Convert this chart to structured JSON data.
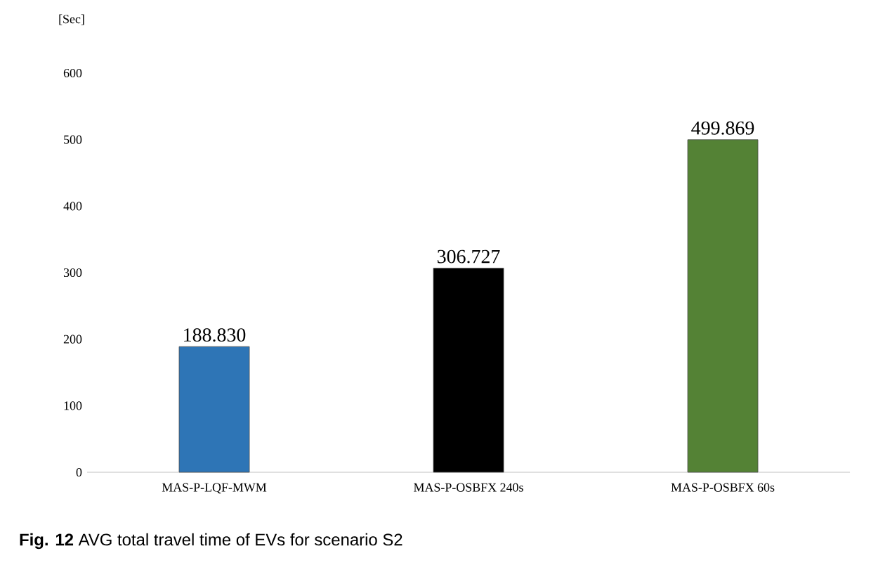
{
  "chart_data": {
    "type": "bar",
    "ylabel": "[Sec]",
    "categories": [
      "MAS-P-LQF-MWM",
      "MAS-P-OSBFX 240s",
      "MAS-P-OSBFX 60s"
    ],
    "values": [
      188.83,
      306.727,
      499.869
    ],
    "colors": [
      "#2e75b6",
      "#000000",
      "#548235"
    ],
    "value_labels": [
      "188.830",
      "306.727",
      "499.869"
    ],
    "ylim": [
      0,
      600
    ],
    "yticks": [
      0,
      100,
      200,
      300,
      400,
      500,
      600
    ],
    "annotations": [
      "**Fig. 12** AVG total travel time of EVs for scenario S2"
    ]
  }
}
